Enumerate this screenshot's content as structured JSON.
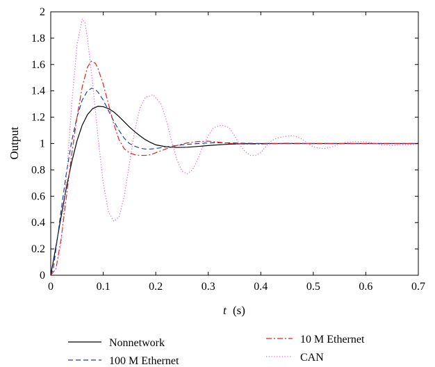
{
  "chart_data": {
    "type": "line",
    "xlabel_var": "t",
    "xlabel_unit": "(s)",
    "ylabel": "Output",
    "xlim": [
      0,
      0.7
    ],
    "ylim": [
      0,
      2
    ],
    "x_ticks": [
      "0",
      "0.1",
      "0.2",
      "0.3",
      "0.4",
      "0.5",
      "0.6",
      "0.7"
    ],
    "y_ticks": [
      "0",
      "0.2",
      "0.4",
      "0.6",
      "0.8",
      "1",
      "1.2",
      "1.4",
      "1.6",
      "1.8",
      "2"
    ],
    "grid": false,
    "legend_position": "bottom",
    "series": [
      {
        "name": "Nonnetwork",
        "color": "#000000",
        "style": "solid",
        "points": [
          [
            0,
            0
          ],
          [
            0.01,
            0.22
          ],
          [
            0.02,
            0.45
          ],
          [
            0.03,
            0.67
          ],
          [
            0.04,
            0.86
          ],
          [
            0.05,
            1.02
          ],
          [
            0.06,
            1.14
          ],
          [
            0.07,
            1.22
          ],
          [
            0.08,
            1.265
          ],
          [
            0.09,
            1.283
          ],
          [
            0.1,
            1.28
          ],
          [
            0.11,
            1.265
          ],
          [
            0.12,
            1.24
          ],
          [
            0.13,
            1.205
          ],
          [
            0.14,
            1.165
          ],
          [
            0.15,
            1.125
          ],
          [
            0.16,
            1.09
          ],
          [
            0.17,
            1.058
          ],
          [
            0.18,
            1.03
          ],
          [
            0.19,
            1.008
          ],
          [
            0.2,
            0.99
          ],
          [
            0.22,
            0.975
          ],
          [
            0.24,
            0.97
          ],
          [
            0.26,
            0.972
          ],
          [
            0.28,
            0.978
          ],
          [
            0.3,
            0.985
          ],
          [
            0.33,
            0.993
          ],
          [
            0.36,
            0.998
          ],
          [
            0.4,
            1.0
          ],
          [
            0.5,
            1.0
          ],
          [
            0.6,
            1.0
          ],
          [
            0.7,
            1.0
          ]
        ]
      },
      {
        "name": "100 M Ethernet",
        "color": "#1f3fa0",
        "style": "dashed",
        "points": [
          [
            0,
            0
          ],
          [
            0.005,
            0.05
          ],
          [
            0.01,
            0.2
          ],
          [
            0.02,
            0.5
          ],
          [
            0.03,
            0.78
          ],
          [
            0.04,
            1.02
          ],
          [
            0.05,
            1.2
          ],
          [
            0.06,
            1.33
          ],
          [
            0.07,
            1.4
          ],
          [
            0.078,
            1.42
          ],
          [
            0.085,
            1.41
          ],
          [
            0.09,
            1.39
          ],
          [
            0.1,
            1.33
          ],
          [
            0.11,
            1.25
          ],
          [
            0.12,
            1.17
          ],
          [
            0.13,
            1.1
          ],
          [
            0.14,
            1.04
          ],
          [
            0.15,
            1.0
          ],
          [
            0.16,
            0.98
          ],
          [
            0.17,
            0.965
          ],
          [
            0.18,
            0.958
          ],
          [
            0.19,
            0.958
          ],
          [
            0.2,
            0.962
          ],
          [
            0.22,
            0.975
          ],
          [
            0.25,
            0.99
          ],
          [
            0.28,
            1.0
          ],
          [
            0.31,
            1.006
          ],
          [
            0.35,
            1.004
          ],
          [
            0.4,
            1.0
          ],
          [
            0.5,
            1.0
          ],
          [
            0.6,
            1.0
          ],
          [
            0.7,
            1.0
          ]
        ]
      },
      {
        "name": "10 M Ethernet",
        "color": "#e02020",
        "style": "dashdot",
        "points": [
          [
            0,
            0
          ],
          [
            0.01,
            0.05
          ],
          [
            0.02,
            0.28
          ],
          [
            0.03,
            0.6
          ],
          [
            0.04,
            0.92
          ],
          [
            0.05,
            1.2
          ],
          [
            0.06,
            1.43
          ],
          [
            0.07,
            1.58
          ],
          [
            0.077,
            1.625
          ],
          [
            0.085,
            1.61
          ],
          [
            0.09,
            1.57
          ],
          [
            0.1,
            1.45
          ],
          [
            0.11,
            1.3
          ],
          [
            0.12,
            1.15
          ],
          [
            0.13,
            1.03
          ],
          [
            0.14,
            0.96
          ],
          [
            0.15,
            0.93
          ],
          [
            0.16,
            0.915
          ],
          [
            0.17,
            0.91
          ],
          [
            0.18,
            0.91
          ],
          [
            0.19,
            0.915
          ],
          [
            0.2,
            0.93
          ],
          [
            0.22,
            0.96
          ],
          [
            0.24,
            0.985
          ],
          [
            0.26,
            1.005
          ],
          [
            0.28,
            1.015
          ],
          [
            0.3,
            1.018
          ],
          [
            0.32,
            1.01
          ],
          [
            0.34,
            1.0
          ],
          [
            0.37,
            0.996
          ],
          [
            0.4,
            0.996
          ],
          [
            0.45,
            1.002
          ],
          [
            0.5,
            1.0
          ],
          [
            0.6,
            1.0
          ],
          [
            0.7,
            1.0
          ]
        ]
      },
      {
        "name": "CAN",
        "color": "#e060c0",
        "style": "dotted",
        "points": [
          [
            0,
            0
          ],
          [
            0.01,
            0.05
          ],
          [
            0.02,
            0.25
          ],
          [
            0.03,
            0.75
          ],
          [
            0.04,
            1.3
          ],
          [
            0.05,
            1.75
          ],
          [
            0.06,
            1.945
          ],
          [
            0.065,
            1.92
          ],
          [
            0.07,
            1.8
          ],
          [
            0.08,
            1.45
          ],
          [
            0.09,
            1.05
          ],
          [
            0.1,
            0.7
          ],
          [
            0.11,
            0.48
          ],
          [
            0.12,
            0.41
          ],
          [
            0.13,
            0.44
          ],
          [
            0.14,
            0.6
          ],
          [
            0.15,
            0.85
          ],
          [
            0.16,
            1.1
          ],
          [
            0.17,
            1.27
          ],
          [
            0.18,
            1.35
          ],
          [
            0.195,
            1.37
          ],
          [
            0.21,
            1.3
          ],
          [
            0.22,
            1.18
          ],
          [
            0.23,
            1.02
          ],
          [
            0.24,
            0.88
          ],
          [
            0.25,
            0.79
          ],
          [
            0.26,
            0.77
          ],
          [
            0.27,
            0.8
          ],
          [
            0.28,
            0.88
          ],
          [
            0.29,
            0.98
          ],
          [
            0.3,
            1.06
          ],
          [
            0.31,
            1.12
          ],
          [
            0.325,
            1.14
          ],
          [
            0.34,
            1.12
          ],
          [
            0.35,
            1.06
          ],
          [
            0.36,
            0.99
          ],
          [
            0.37,
            0.94
          ],
          [
            0.38,
            0.91
          ],
          [
            0.39,
            0.91
          ],
          [
            0.4,
            0.93
          ],
          [
            0.41,
            0.98
          ],
          [
            0.42,
            1.02
          ],
          [
            0.43,
            1.04
          ],
          [
            0.44,
            1.05
          ],
          [
            0.46,
            1.06
          ],
          [
            0.47,
            1.05
          ],
          [
            0.48,
            1.03
          ],
          [
            0.49,
            1.0
          ],
          [
            0.5,
            0.975
          ],
          [
            0.51,
            0.965
          ],
          [
            0.52,
            0.962
          ],
          [
            0.53,
            0.968
          ],
          [
            0.54,
            0.98
          ],
          [
            0.55,
            0.995
          ],
          [
            0.56,
            1.008
          ],
          [
            0.58,
            1.015
          ],
          [
            0.6,
            1.012
          ],
          [
            0.62,
            1.0
          ],
          [
            0.63,
            0.99
          ],
          [
            0.65,
            0.985
          ],
          [
            0.67,
            0.99
          ],
          [
            0.69,
            0.992
          ],
          [
            0.7,
            0.994
          ]
        ]
      }
    ]
  }
}
